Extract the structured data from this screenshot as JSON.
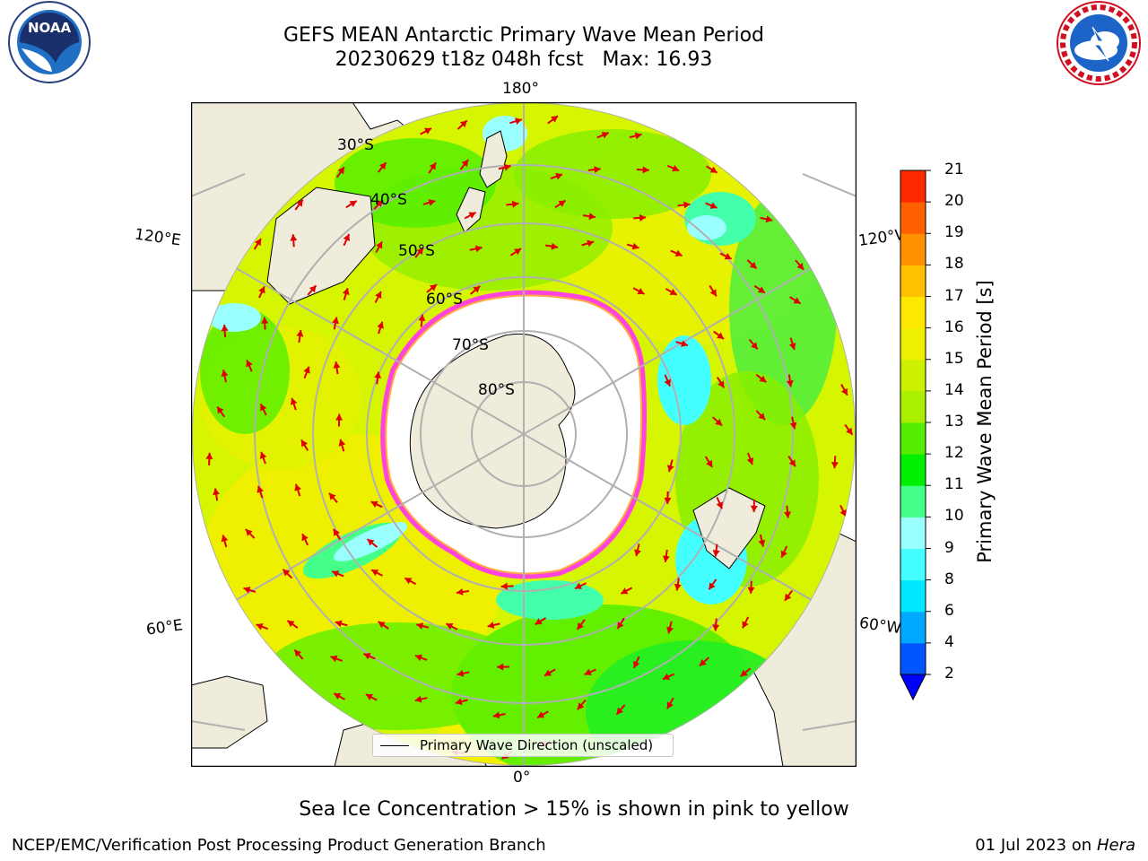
{
  "header": {
    "title_line1": "GEFS MEAN Antarctic Primary Wave Mean Period",
    "title_line2": "20230629 t18z 048h fcst   Max: 16.93"
  },
  "logos": {
    "left": "noaa-logo",
    "right": "nws-logo"
  },
  "map": {
    "projection": "south-polar-stereographic",
    "longitude_labels": [
      "180°",
      "120°E",
      "120°W",
      "60°E",
      "60°W",
      "0°"
    ],
    "latitude_labels": [
      "30°S",
      "40°S",
      "50°S",
      "60°S",
      "70°S",
      "80°S"
    ],
    "legend_label": "Primary Wave Direction (unscaled)",
    "arrow_color": "#e00000",
    "land_color": "#efecdc",
    "ice_color": "#ff44dd"
  },
  "colorbar": {
    "label": "Primary Wave Mean Period [s]",
    "ticks": [
      "2",
      "4",
      "6",
      "8",
      "9",
      "10",
      "11",
      "12",
      "13",
      "14",
      "15",
      "16",
      "17",
      "18",
      "19",
      "20",
      "21"
    ],
    "colors": [
      "#0055ff",
      "#00a8ff",
      "#00e8ff",
      "#44ffff",
      "#99ffff",
      "#44ff88",
      "#00ee00",
      "#55ee00",
      "#aaee00",
      "#ccf000",
      "#eef000",
      "#ffe800",
      "#ffc000",
      "#ff9000",
      "#ff6000",
      "#ff2a00"
    ],
    "extend_color": "#0000ff"
  },
  "subtitle": "Sea Ice Concentration > 15% is shown in pink to yellow",
  "footer": {
    "left": "NCEP/EMC/Verification Post Processing Product Generation Branch",
    "right_date": "01 Jul 2023 on",
    "right_host": "Hera"
  }
}
